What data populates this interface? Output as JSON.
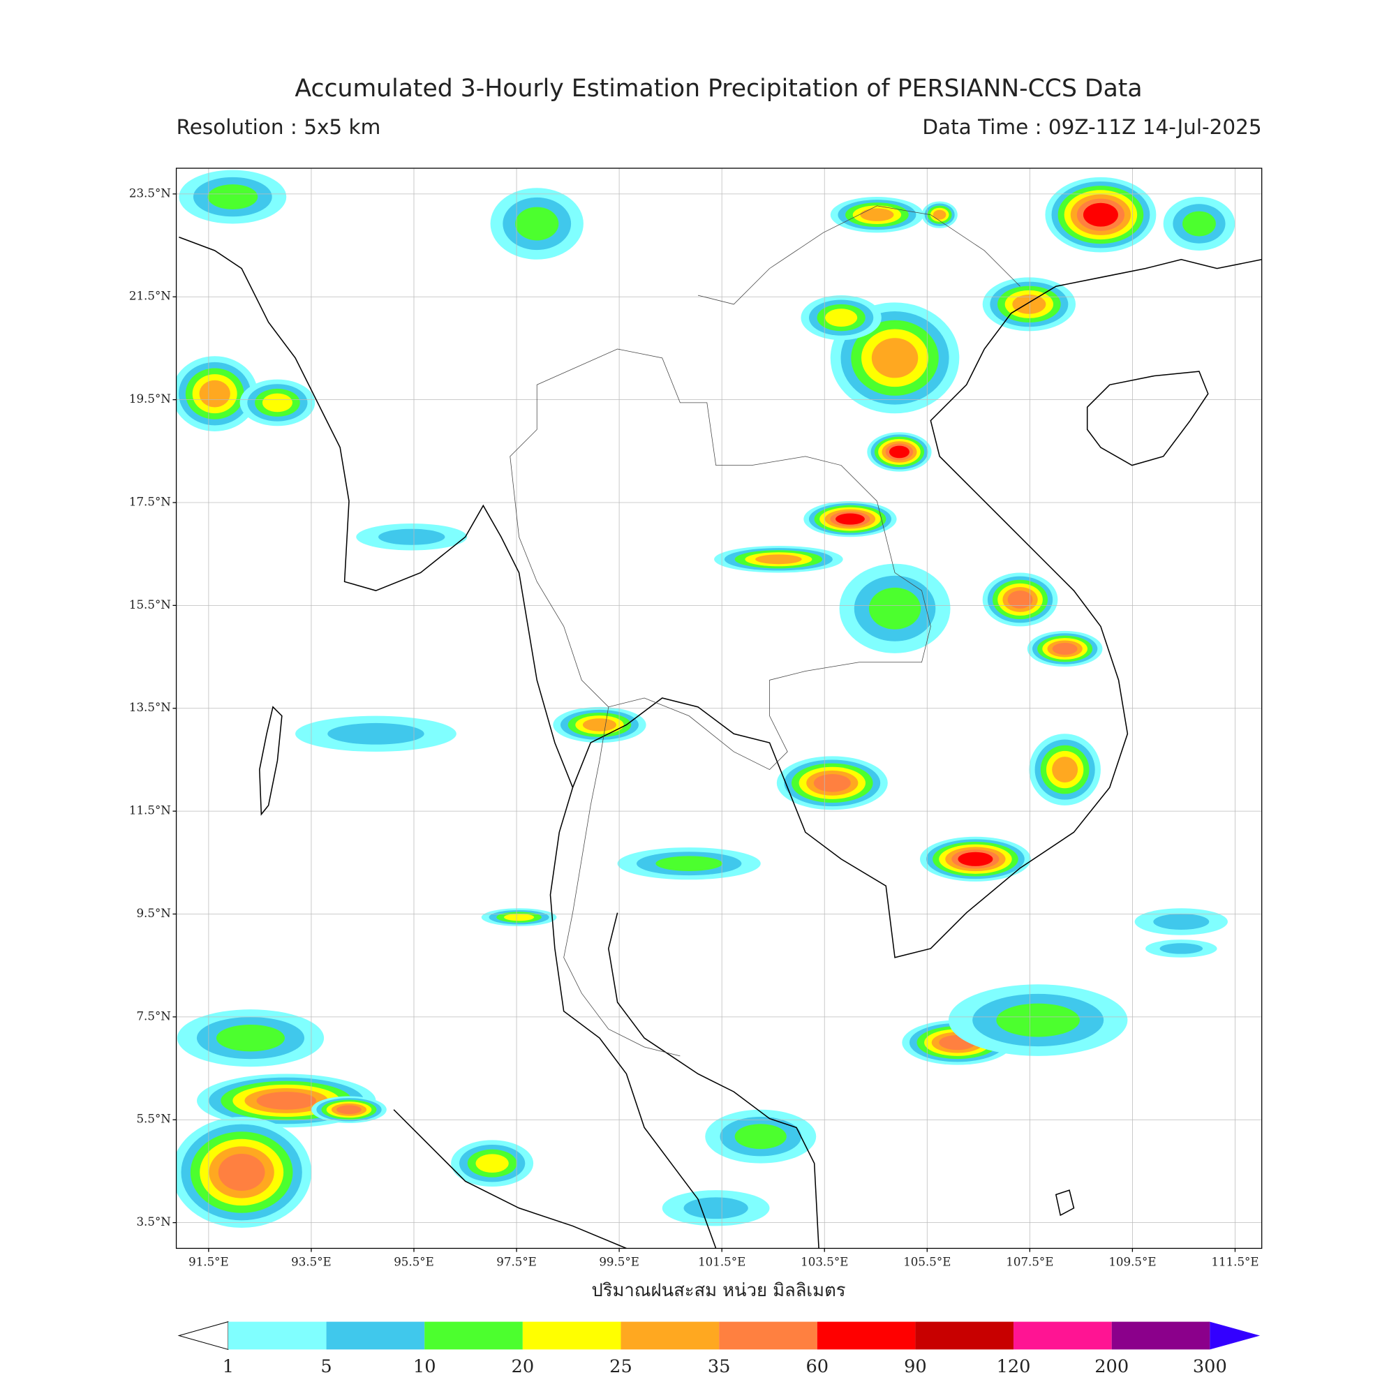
{
  "map": {
    "title": "Accumulated 3-Hourly Estimation Precipitation of PERSIANN-CCS Data",
    "resolution": "Resolution : 5x5 km",
    "data_time": "Data Time : 09Z-11Z 14-Jul-2025",
    "xlabel": "ปริมาณฝนสะสม หน่วย มิลลิเมตร",
    "lon_range": [
      90.87,
      112.02
    ],
    "lat_range": [
      3.0,
      24.0
    ],
    "lon_ticks": [
      {
        "value": 91.5,
        "label": "91.5°E"
      },
      {
        "value": 93.5,
        "label": "93.5°E"
      },
      {
        "value": 95.5,
        "label": "95.5°E"
      },
      {
        "value": 97.5,
        "label": "97.5°E"
      },
      {
        "value": 99.5,
        "label": "99.5°E"
      },
      {
        "value": 101.5,
        "label": "101.5°E"
      },
      {
        "value": 103.5,
        "label": "103.5°E"
      },
      {
        "value": 105.5,
        "label": "105.5°E"
      },
      {
        "value": 107.5,
        "label": "107.5°E"
      },
      {
        "value": 109.5,
        "label": "109.5°E"
      },
      {
        "value": 111.5,
        "label": "111.5°E"
      }
    ],
    "lat_ticks": [
      {
        "value": 23.5,
        "label": "23.5°N"
      },
      {
        "value": 21.5,
        "label": "21.5°N"
      },
      {
        "value": 19.5,
        "label": "19.5°N"
      },
      {
        "value": 17.5,
        "label": "17.5°N"
      },
      {
        "value": 15.5,
        "label": "15.5°N"
      },
      {
        "value": 13.5,
        "label": "13.5°N"
      },
      {
        "value": 11.5,
        "label": "11.5°N"
      },
      {
        "value": 9.5,
        "label": "9.5°N"
      },
      {
        "value": 7.5,
        "label": "7.5°N"
      },
      {
        "value": 5.5,
        "label": "5.5°N"
      },
      {
        "value": 3.5,
        "label": "3.5°N"
      }
    ],
    "colorbar": {
      "levels": [
        1,
        5,
        10,
        20,
        25,
        35,
        60,
        90,
        120,
        200,
        300
      ],
      "colors": [
        "#80ffff",
        "#40c8ec",
        "#4cff2e",
        "#ffff00",
        "#ffa820",
        "#ff8040",
        "#ff0000",
        "#c80000",
        "#ff1493",
        "#8b008b"
      ],
      "over_color": "#3300ff"
    }
  }
}
